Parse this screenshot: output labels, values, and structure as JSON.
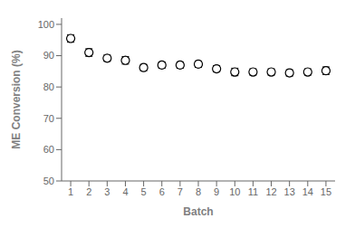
{
  "chart_data": {
    "type": "scatter",
    "x": [
      1,
      2,
      3,
      4,
      5,
      6,
      7,
      8,
      9,
      10,
      11,
      12,
      13,
      14,
      15
    ],
    "values": [
      95.5,
      91.0,
      89.2,
      88.5,
      86.2,
      87.0,
      87.0,
      87.3,
      85.8,
      84.8,
      84.8,
      84.8,
      84.5,
      84.8,
      85.2
    ],
    "yerr": [
      1.2,
      1.2,
      1.0,
      1.2,
      1.0,
      1.0,
      1.0,
      1.0,
      1.0,
      1.2,
      1.0,
      1.0,
      1.0,
      1.0,
      1.2
    ],
    "xlabel": "Batch",
    "ylabel": "ME Conversion (%)",
    "xlim": [
      0.5,
      15.5
    ],
    "ylim": [
      50,
      102
    ],
    "xticks": [
      1,
      2,
      3,
      4,
      5,
      6,
      7,
      8,
      9,
      10,
      11,
      12,
      13,
      14,
      15
    ],
    "yticks": [
      50,
      60,
      70,
      80,
      90,
      100
    ],
    "color": "#000000",
    "marker": "circle",
    "grid": false
  }
}
